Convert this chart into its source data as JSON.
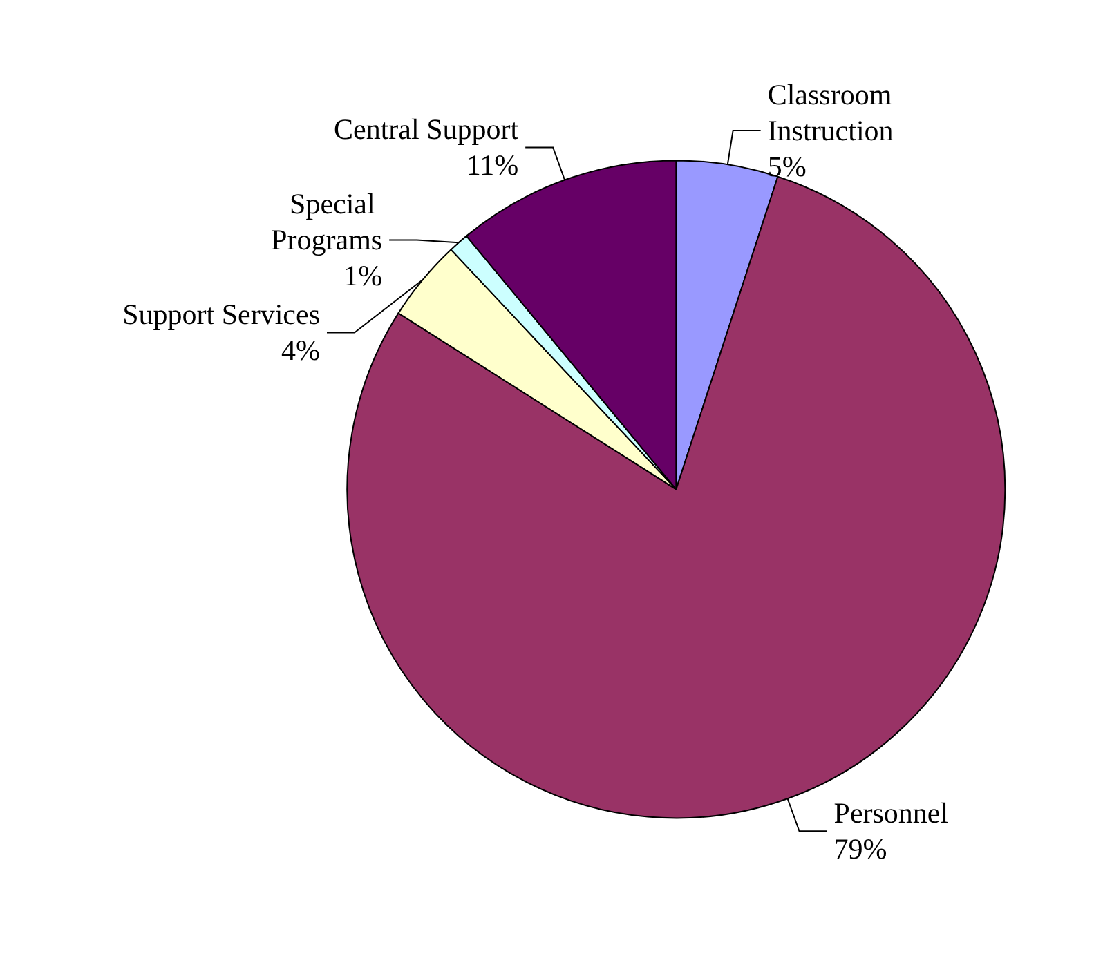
{
  "chart_data": {
    "type": "pie",
    "categories": [
      "Classroom Instruction",
      "Personnel",
      "Support Services",
      "Special Programs",
      "Central Support"
    ],
    "values": [
      5,
      79,
      4,
      1,
      11
    ],
    "value_labels": [
      "5%",
      "79%",
      "4%",
      "1%",
      "11%"
    ],
    "colors": [
      "#9999ff",
      "#993366",
      "#ffffcc",
      "#ccffff",
      "#660066"
    ],
    "legend": false
  }
}
